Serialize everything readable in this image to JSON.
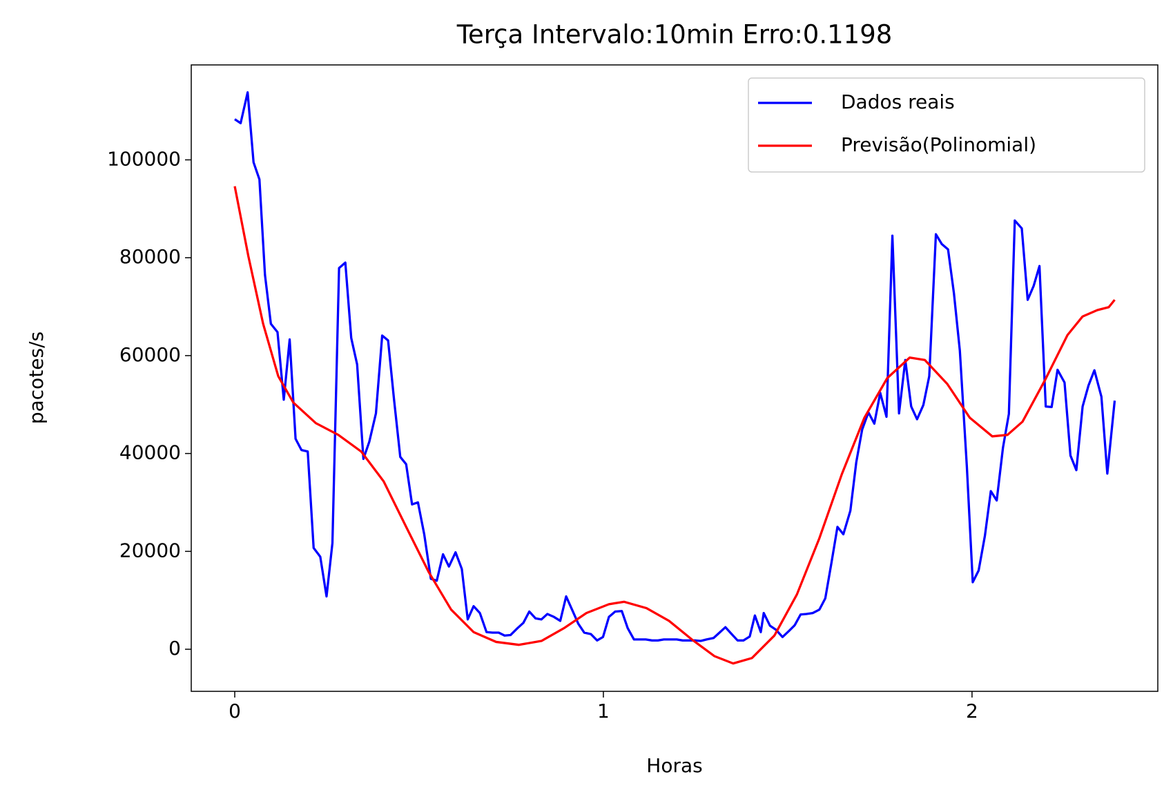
{
  "chart_data": {
    "type": "line",
    "title": "Terça Intervalo:10min Erro:0.1198",
    "x_label": "Horas",
    "y_label": "pacotes/s",
    "xlim": [
      -0.118,
      2.504
    ],
    "ylim": [
      -8600,
      119400
    ],
    "xticks": [
      0,
      1,
      2
    ],
    "yticks": [
      0,
      20000,
      40000,
      60000,
      80000,
      100000
    ],
    "legend": "upper right",
    "series": [
      {
        "name": "Dados reais",
        "color": "#0000ff",
        "x": [
          0,
          0.016,
          0.035,
          0.051,
          0.067,
          0.082,
          0.098,
          0.116,
          0.133,
          0.149,
          0.165,
          0.181,
          0.198,
          0.214,
          0.232,
          0.249,
          0.265,
          0.283,
          0.3,
          0.316,
          0.332,
          0.349,
          0.365,
          0.383,
          0.4,
          0.416,
          0.432,
          0.449,
          0.465,
          0.481,
          0.497,
          0.514,
          0.532,
          0.548,
          0.565,
          0.581,
          0.599,
          0.616,
          0.632,
          0.648,
          0.665,
          0.683,
          0.699,
          0.716,
          0.732,
          0.748,
          0.767,
          0.783,
          0.799,
          0.816,
          0.832,
          0.848,
          0.866,
          0.883,
          0.899,
          0.915,
          0.932,
          0.948,
          0.966,
          0.983,
          0.999,
          1.015,
          1.032,
          1.05,
          1.066,
          1.083,
          1.099,
          1.115,
          1.132,
          1.148,
          1.164,
          1.183,
          1.199,
          1.215,
          1.231,
          1.248,
          1.264,
          1.28,
          1.299,
          1.315,
          1.331,
          1.348,
          1.364,
          1.38,
          1.397,
          1.411,
          1.427,
          1.435,
          1.452,
          1.468,
          1.486,
          1.503,
          1.519,
          1.535,
          1.551,
          1.568,
          1.586,
          1.602,
          1.619,
          1.635,
          1.651,
          1.67,
          1.686,
          1.702,
          1.719,
          1.735,
          1.751,
          1.768,
          1.784,
          1.802,
          1.819,
          1.835,
          1.851,
          1.868,
          1.884,
          1.902,
          1.918,
          1.935,
          1.951,
          1.967,
          1.986,
          2.002,
          2.018,
          2.035,
          2.051,
          2.067,
          2.084,
          2.1,
          2.116,
          2.135,
          2.151,
          2.167,
          2.183,
          2.2,
          2.216,
          2.232,
          2.251,
          2.267,
          2.283,
          2.3,
          2.316,
          2.332,
          2.351,
          2.367,
          2.387
        ],
        "values": [
          108300,
          107500,
          113800,
          99500,
          96000,
          76500,
          66500,
          64800,
          51000,
          63300,
          43000,
          40700,
          40400,
          20700,
          18900,
          10800,
          21700,
          77900,
          79000,
          63600,
          58200,
          38900,
          42400,
          48200,
          64100,
          63100,
          51100,
          39300,
          37800,
          29600,
          30000,
          23500,
          14400,
          14000,
          19400,
          16900,
          19800,
          16400,
          6100,
          8800,
          7400,
          3500,
          3400,
          3400,
          2800,
          2900,
          4300,
          5400,
          7700,
          6300,
          6100,
          7200,
          6600,
          5800,
          10800,
          8100,
          5200,
          3400,
          3100,
          1800,
          2500,
          6600,
          7700,
          7800,
          4300,
          2000,
          2000,
          2000,
          1800,
          1800,
          2000,
          2000,
          2000,
          1800,
          1800,
          1800,
          1700,
          2000,
          2300,
          3400,
          4500,
          3100,
          1800,
          1800,
          2600,
          6900,
          3500,
          7400,
          4800,
          4000,
          2500,
          3700,
          4900,
          7100,
          7200,
          7400,
          8100,
          10400,
          17800,
          25000,
          23500,
          28300,
          38200,
          44900,
          48400,
          46100,
          52400,
          47500,
          84500,
          48200,
          59100,
          49600,
          47000,
          49900,
          55800,
          84800,
          82800,
          81700,
          72700,
          61000,
          37300,
          13700,
          16100,
          23200,
          32300,
          30400,
          41200,
          48100,
          87600,
          86000,
          71400,
          74200,
          78300,
          49600,
          49500,
          57100,
          54500,
          39600,
          36600,
          49600,
          53900,
          57000,
          51600,
          35900,
          50800
        ]
      },
      {
        "name": "Previsão(Polinomial)",
        "color": "#ff0000",
        "x": [
          0,
          0.037,
          0.077,
          0.118,
          0.159,
          0.22,
          0.281,
          0.343,
          0.404,
          0.465,
          0.526,
          0.587,
          0.648,
          0.709,
          0.771,
          0.832,
          0.893,
          0.954,
          1.015,
          1.056,
          1.117,
          1.178,
          1.24,
          1.301,
          1.352,
          1.403,
          1.464,
          1.525,
          1.586,
          1.647,
          1.708,
          1.77,
          1.831,
          1.872,
          1.933,
          1.994,
          2.055,
          2.096,
          2.137,
          2.198,
          2.259,
          2.3,
          2.34,
          2.371,
          2.387
        ],
        "values": [
          94600,
          80300,
          66500,
          55800,
          50400,
          46200,
          43800,
          40400,
          34300,
          25000,
          15800,
          8100,
          3500,
          1500,
          900,
          1700,
          4300,
          7400,
          9200,
          9700,
          8400,
          5800,
          2000,
          -1400,
          -2900,
          -1800,
          2800,
          11200,
          22700,
          35800,
          47300,
          55400,
          59600,
          59100,
          54200,
          47300,
          43500,
          43800,
          46500,
          55000,
          64200,
          68000,
          69300,
          69900,
          71400
        ]
      }
    ]
  }
}
